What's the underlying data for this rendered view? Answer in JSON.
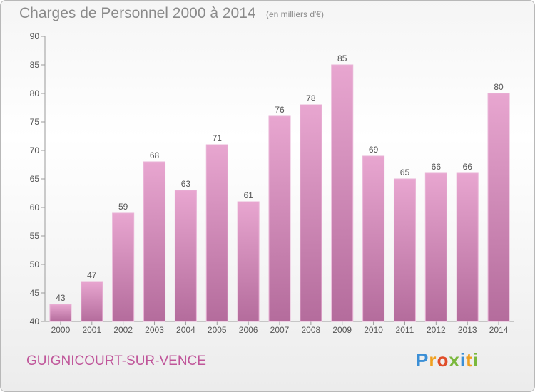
{
  "chart_data": {
    "type": "bar",
    "title": "Charges de Personnel 2000 à 2014",
    "subtitle": "(en milliers d'€)",
    "categories": [
      "2000",
      "2001",
      "2002",
      "2003",
      "2004",
      "2005",
      "2006",
      "2007",
      "2008",
      "2009",
      "2010",
      "2011",
      "2012",
      "2013",
      "2014"
    ],
    "values": [
      43,
      47,
      59,
      68,
      63,
      71,
      61,
      76,
      78,
      85,
      69,
      65,
      66,
      66,
      80
    ],
    "yticks": [
      40,
      45,
      50,
      55,
      60,
      65,
      70,
      75,
      80,
      85,
      90
    ],
    "ylim": [
      40,
      90
    ],
    "grid": false,
    "bar_color": "#d98cbc"
  },
  "footer": {
    "commune": "GUIGNICOURT-SUR-VENCE",
    "logo_letters": [
      "P",
      "r",
      "o",
      "x",
      "i",
      "t",
      "i"
    ],
    "logo_colors": [
      "#3b8fd6",
      "#f0a020",
      "#e04e2a",
      "#7ab83c",
      "#3b8fd6",
      "#f0a020",
      "#7ab83c"
    ]
  }
}
